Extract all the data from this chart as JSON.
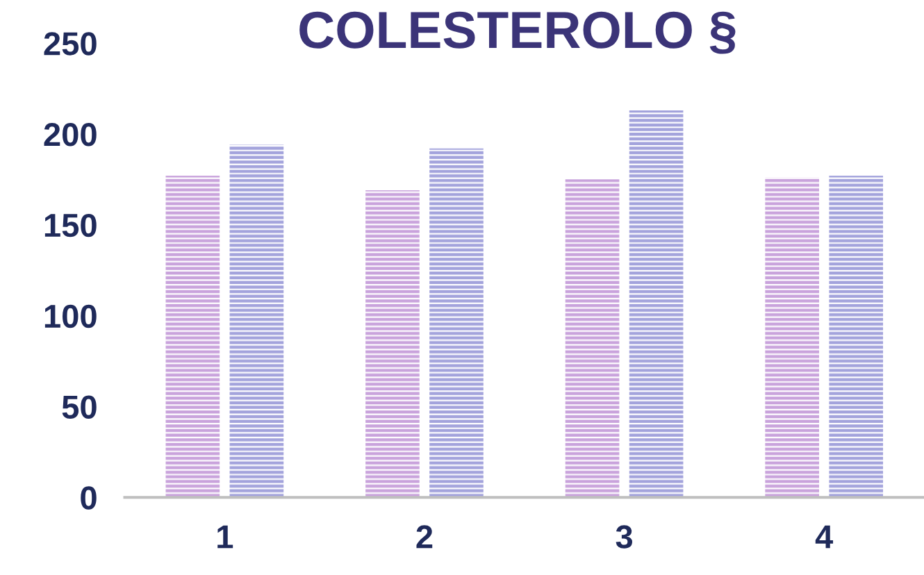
{
  "chart_data": {
    "type": "bar",
    "title": "COLESTEROLO §",
    "categories": [
      "1",
      "2",
      "3",
      "4"
    ],
    "series": [
      {
        "color": "#c9a3dc",
        "values": [
          177,
          169,
          175,
          176
        ]
      },
      {
        "color": "#a3a3dc",
        "values": [
          194,
          192,
          213,
          177
        ]
      }
    ],
    "ylim": [
      0,
      250
    ],
    "yticks": [
      0,
      50,
      100,
      150,
      200,
      250
    ],
    "grid": false
  }
}
